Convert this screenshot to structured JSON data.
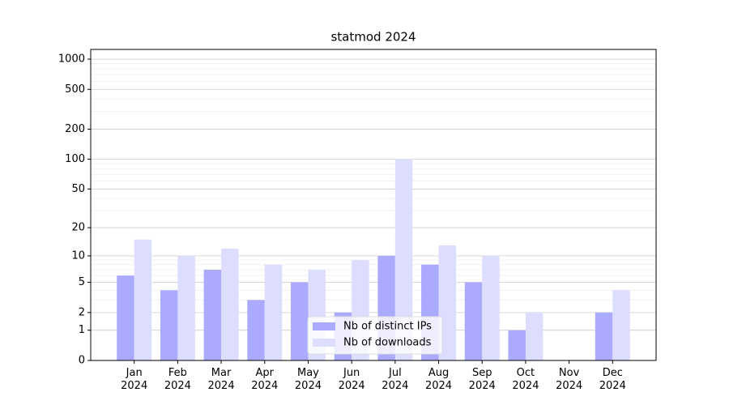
{
  "chart_data": {
    "type": "bar",
    "title": "statmod 2024",
    "categories": [
      "Jan\n2024",
      "Feb\n2024",
      "Mar\n2024",
      "Apr\n2024",
      "May\n2024",
      "Jun\n2024",
      "Jul\n2024",
      "Aug\n2024",
      "Sep\n2024",
      "Oct\n2024",
      "Nov\n2024",
      "Dec\n2024"
    ],
    "series": [
      {
        "name": "Nb of distinct IPs",
        "color": "#aaaaff",
        "values": [
          6,
          4,
          7,
          3,
          5,
          2,
          10,
          8,
          5,
          1,
          0,
          2
        ]
      },
      {
        "name": "Nb of downloads",
        "color": "#ddddff",
        "values": [
          15,
          10,
          12,
          8,
          7,
          9,
          100,
          13,
          10,
          2,
          0,
          4
        ]
      }
    ],
    "yscale": "log1p",
    "ylim": [
      0,
      1250
    ],
    "yticks": [
      0,
      1,
      2,
      5,
      10,
      20,
      50,
      100,
      200,
      500,
      1000
    ],
    "minor_yticks": [
      3,
      4,
      6,
      7,
      8,
      9,
      30,
      40,
      60,
      70,
      80,
      90,
      300,
      400,
      600,
      700,
      800,
      900
    ],
    "grid": true,
    "legend": "lower center"
  }
}
